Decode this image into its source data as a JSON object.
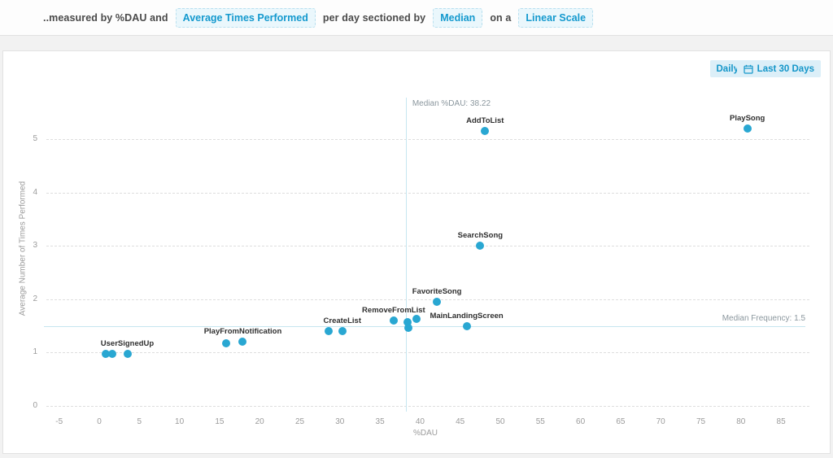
{
  "header": {
    "prefix": "..measured by %DAU and",
    "metric_pill": "Average Times Performed",
    "sectioned_text": "per day sectioned by",
    "section_pill": "Median",
    "on_a_text": "on a",
    "scale_pill": "Linear Scale"
  },
  "toolbar": {
    "interval_label": "Daily",
    "range_label": "Last 30 Days",
    "range_icon": "calendar-icon"
  },
  "colors": {
    "accent_blue": "#1499ce",
    "dot_fill": "#29a7d2",
    "median_line": "#c6e6f0",
    "pill_bg": "#eaf7fc",
    "button_bg": "#dceff8",
    "grid": "#dedede",
    "tick_text": "#9b9b9b"
  },
  "chart_data": {
    "type": "scatter",
    "title": "",
    "xlabel": "%DAU",
    "ylabel": "Average Number of Times Performed",
    "xlim": [
      -7.5,
      87.5
    ],
    "ylim": [
      0,
      5.6
    ],
    "x_ticks": [
      -5,
      0,
      5,
      10,
      15,
      20,
      25,
      30,
      35,
      40,
      45,
      50,
      55,
      60,
      65,
      70,
      75,
      80,
      85
    ],
    "y_ticks": [
      0,
      1,
      2,
      3,
      4,
      5
    ],
    "grid": "horizontal-dashed",
    "legend": "none",
    "median_x": {
      "value": 38.22,
      "label": "Median %DAU: 38.22"
    },
    "median_y": {
      "value": 1.5,
      "label": "Median Frequency: 1.5"
    },
    "points": [
      {
        "name": "UserSignedUp",
        "x": 0.8,
        "y": 0.98,
        "labeled": false
      },
      {
        "name": "UserSignedUp",
        "x": 1.6,
        "y": 0.98,
        "labeled": false
      },
      {
        "name": "UserSignedUp",
        "x": 3.5,
        "y": 0.98,
        "labeled": true
      },
      {
        "name": "PlayFromNotification",
        "x": 15.8,
        "y": 1.17,
        "labeled": false
      },
      {
        "name": "PlayFromNotification",
        "x": 17.9,
        "y": 1.2,
        "labeled": true
      },
      {
        "name": "CreateList",
        "x": 28.6,
        "y": 1.4,
        "labeled": false
      },
      {
        "name": "CreateList",
        "x": 30.3,
        "y": 1.4,
        "labeled": true
      },
      {
        "name": "RemoveFromList",
        "x": 36.7,
        "y": 1.6,
        "labeled": true
      },
      {
        "name": "RemoveFromList",
        "x": 38.4,
        "y": 1.57,
        "labeled": false
      },
      {
        "name": "RemoveFromList",
        "x": 38.5,
        "y": 1.46,
        "labeled": false
      },
      {
        "name": "RemoveFromList",
        "x": 39.6,
        "y": 1.63,
        "labeled": false
      },
      {
        "name": "FavoriteSong",
        "x": 42.1,
        "y": 1.95,
        "labeled": true
      },
      {
        "name": "MainLandingScreen",
        "x": 45.8,
        "y": 1.5,
        "labeled": true
      },
      {
        "name": "SearchSong",
        "x": 47.5,
        "y": 3.0,
        "labeled": true
      },
      {
        "name": "AddToList",
        "x": 48.1,
        "y": 5.15,
        "labeled": true
      },
      {
        "name": "PlaySong",
        "x": 80.8,
        "y": 5.2,
        "labeled": true
      }
    ]
  }
}
